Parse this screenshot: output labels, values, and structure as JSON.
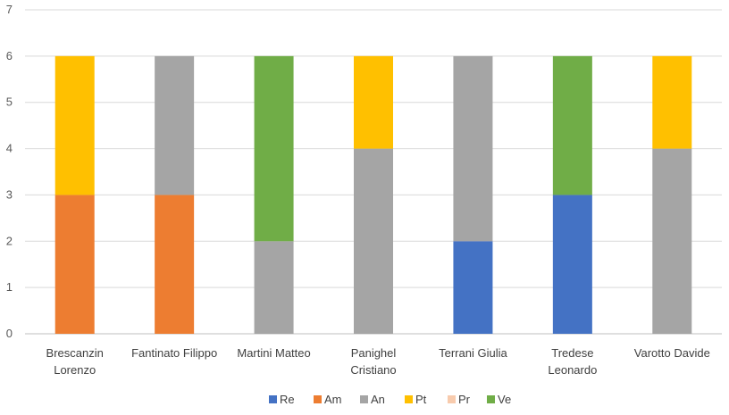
{
  "chart_data": {
    "type": "bar",
    "stacked": true,
    "categories": [
      [
        "Brescanzin",
        "Lorenzo"
      ],
      [
        "Fantinato Filippo"
      ],
      [
        "Martini Matteo"
      ],
      [
        "Panighel",
        "Cristiano"
      ],
      [
        "Terrani Giulia"
      ],
      [
        "Tredese",
        "Leonardo"
      ],
      [
        "Varotto Davide"
      ]
    ],
    "series": [
      {
        "name": "Re",
        "color": "#4472C4",
        "values": [
          0,
          0,
          0,
          0,
          2,
          3,
          0
        ]
      },
      {
        "name": "Am",
        "color": "#ED7D31",
        "values": [
          3,
          3,
          0,
          0,
          0,
          0,
          0
        ]
      },
      {
        "name": "An",
        "color": "#A5A5A5",
        "values": [
          0,
          3,
          2,
          4,
          4,
          0,
          4
        ]
      },
      {
        "name": "Pt",
        "color": "#FFC000",
        "values": [
          3,
          0,
          0,
          2,
          0,
          0,
          2
        ]
      },
      {
        "name": "Pr",
        "color": "#F8CBAD",
        "values": [
          0,
          0,
          0,
          0,
          0,
          0,
          0
        ]
      },
      {
        "name": "Ve",
        "color": "#70AD47",
        "values": [
          0,
          0,
          4,
          0,
          0,
          3,
          0
        ]
      }
    ],
    "ylim": [
      0,
      7
    ],
    "yticks": [
      0,
      1,
      2,
      3,
      4,
      5,
      6,
      7
    ],
    "grid": true,
    "legend_position": "bottom",
    "title": "",
    "xlabel": "",
    "ylabel": ""
  }
}
